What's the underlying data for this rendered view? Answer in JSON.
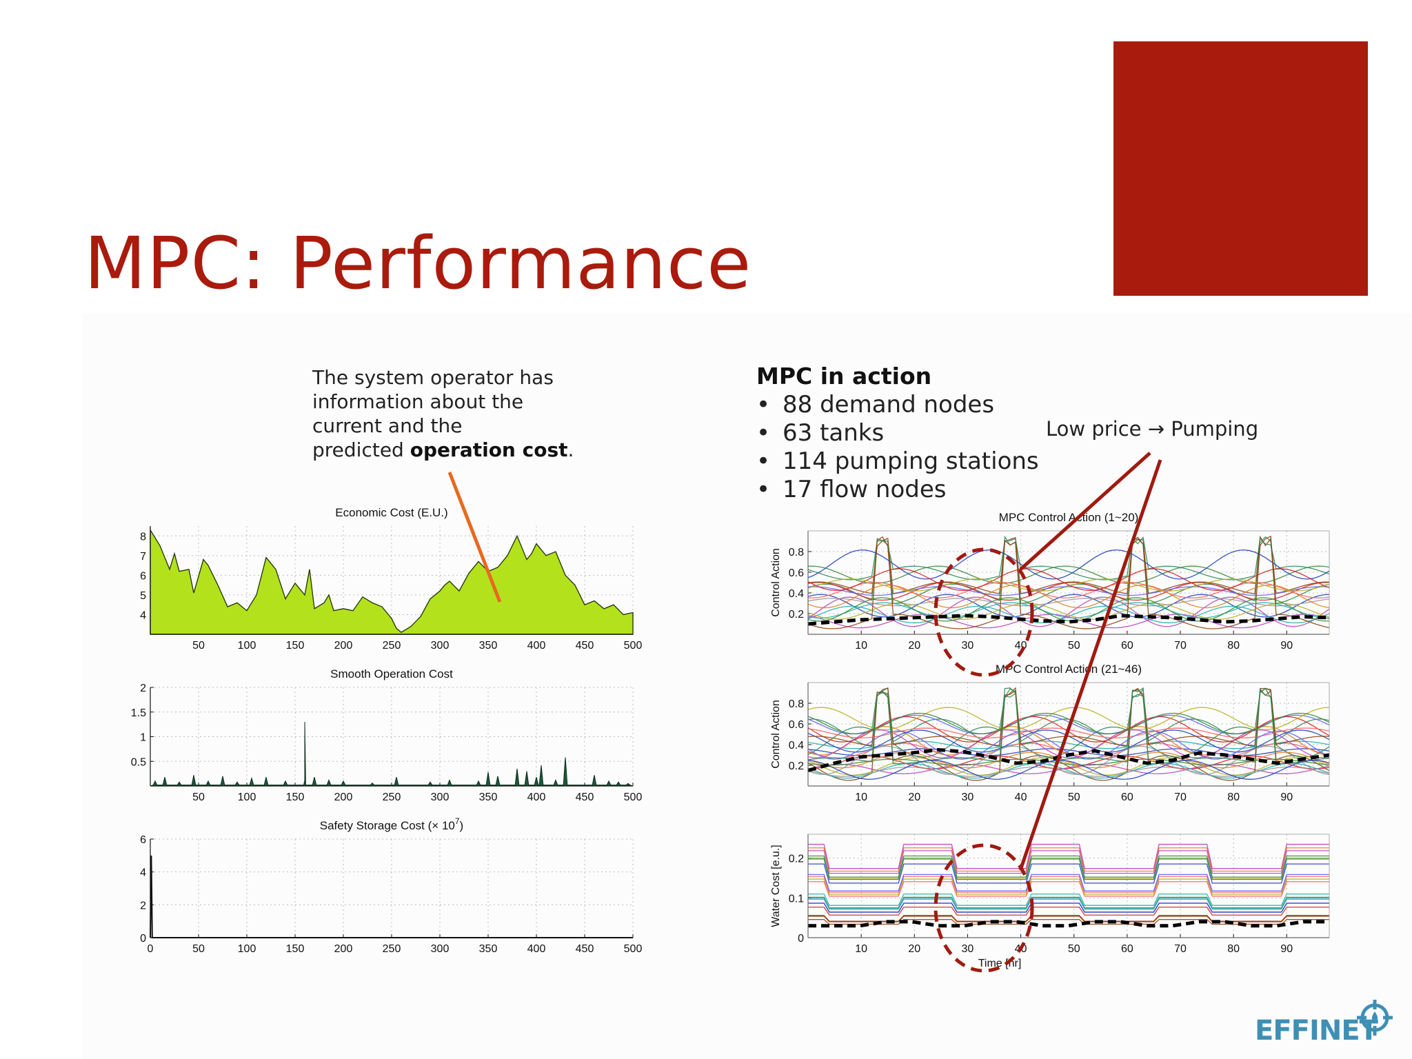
{
  "slide": {
    "title": "MPC: Performance",
    "accent_color": "#a91b0d",
    "callout": {
      "line1": "The system operator has",
      "line2": "information about the",
      "line3": "current and the",
      "line4_prefix": "predicted ",
      "line4_bold": "operation cost",
      "line4_suffix": "."
    },
    "mpc_heading": "MPC in action",
    "mpc_bullets": [
      "88 demand nodes",
      "63 tanks",
      "114 pumping stations",
      "17 flow nodes"
    ],
    "bullet_glyph": "•",
    "low_price_label": "Low price → Pumping",
    "logo_text": "EFFINET",
    "logo_color": "#3f8fb4",
    "arrow_color": "#e8691e",
    "annotation_color": "#a01a10"
  },
  "chart_data": [
    {
      "id": "economic",
      "type": "area",
      "title": "Economic Cost (E.U.)",
      "xlim": [
        0,
        500
      ],
      "ylim": [
        3,
        8.5
      ],
      "xticks": [
        50,
        100,
        150,
        200,
        250,
        300,
        350,
        400,
        450,
        500
      ],
      "yticks": [
        4,
        5,
        6,
        7,
        8
      ],
      "fill": "#b3e21d",
      "x": [
        0,
        10,
        20,
        25,
        30,
        40,
        45,
        55,
        60,
        70,
        80,
        90,
        100,
        110,
        120,
        125,
        130,
        140,
        150,
        160,
        165,
        170,
        180,
        185,
        190,
        200,
        210,
        220,
        230,
        240,
        250,
        255,
        260,
        270,
        280,
        290,
        300,
        305,
        310,
        320,
        330,
        340,
        350,
        360,
        370,
        380,
        390,
        395,
        400,
        410,
        420,
        430,
        440,
        450,
        460,
        470,
        480,
        490,
        500
      ],
      "y": [
        8.3,
        7.5,
        6.3,
        7.1,
        6.2,
        6.3,
        5.1,
        6.8,
        6.5,
        5.5,
        4.4,
        4.6,
        4.2,
        5.0,
        6.9,
        6.6,
        6.3,
        4.8,
        5.6,
        5.0,
        6.3,
        4.3,
        4.6,
        5.0,
        4.2,
        4.3,
        4.2,
        4.9,
        4.6,
        4.4,
        3.8,
        3.3,
        3.1,
        3.4,
        3.9,
        4.8,
        5.2,
        5.5,
        5.7,
        5.2,
        6.1,
        6.7,
        6.2,
        6.4,
        7.0,
        8.0,
        6.8,
        7.1,
        7.6,
        7.0,
        7.2,
        6.0,
        5.5,
        4.5,
        4.7,
        4.3,
        4.5,
        4.0,
        4.1
      ]
    },
    {
      "id": "smooth",
      "type": "area",
      "title": "Smooth Operation Cost",
      "xlim": [
        0,
        500
      ],
      "ylim": [
        0,
        2
      ],
      "xticks": [
        50,
        100,
        150,
        200,
        250,
        300,
        350,
        400,
        450,
        500
      ],
      "yticks": [
        0.5,
        1,
        1.5,
        2
      ],
      "fill": "#1a5a3a",
      "spikes": [
        [
          5,
          0.1
        ],
        [
          15,
          0.18
        ],
        [
          30,
          0.08
        ],
        [
          45,
          0.22
        ],
        [
          60,
          0.1
        ],
        [
          75,
          0.2
        ],
        [
          90,
          0.08
        ],
        [
          105,
          0.16
        ],
        [
          120,
          0.18
        ],
        [
          140,
          0.1
        ],
        [
          160,
          0.12
        ],
        [
          170,
          0.18
        ],
        [
          185,
          0.12
        ],
        [
          200,
          0.1
        ],
        [
          230,
          0.06
        ],
        [
          255,
          0.18
        ],
        [
          290,
          0.08
        ],
        [
          310,
          0.12
        ],
        [
          340,
          0.1
        ],
        [
          350,
          0.28
        ],
        [
          360,
          0.2
        ],
        [
          380,
          0.35
        ],
        [
          390,
          0.3
        ],
        [
          400,
          0.18
        ],
        [
          405,
          0.42
        ],
        [
          420,
          0.12
        ],
        [
          430,
          0.58
        ],
        [
          460,
          0.22
        ],
        [
          475,
          0.1
        ],
        [
          485,
          0.08
        ],
        [
          495,
          0.05
        ]
      ],
      "peak": [
        160,
        1.3
      ]
    },
    {
      "id": "safety",
      "type": "line",
      "title": "Safety Storage Cost",
      "title_suffix": "(× 10",
      "title_exp": "7",
      "title_close": ")",
      "xlim": [
        0,
        500
      ],
      "ylim": [
        0,
        6
      ],
      "xticks": [
        0,
        50,
        100,
        150,
        200,
        250,
        300,
        350,
        400,
        450,
        500
      ],
      "yticks": [
        0,
        2,
        4,
        6
      ],
      "x": [
        0,
        1,
        2,
        500
      ],
      "y": [
        0,
        5.0,
        0,
        0
      ]
    },
    {
      "id": "ctrl1",
      "type": "line",
      "title": "MPC Control Action (1~20)",
      "ylabel": "Control Action",
      "xlim": [
        0,
        98
      ],
      "ylim": [
        0,
        1
      ],
      "xticks": [
        10,
        20,
        30,
        40,
        50,
        60,
        70,
        80,
        90
      ],
      "yticks": [
        0.2,
        0.4,
        0.6,
        0.8
      ],
      "series_count": 20,
      "average": [
        0.1,
        0.12,
        0.14,
        0.15,
        0.16,
        0.17,
        0.18,
        0.17,
        0.15,
        0.13,
        0.12,
        0.14,
        0.18,
        0.17,
        0.16,
        0.14,
        0.12,
        0.13,
        0.15,
        0.17,
        0.16
      ]
    },
    {
      "id": "ctrl2",
      "type": "line",
      "title": "MPC Control Action (21~46)",
      "ylabel": "Control Action",
      "xlim": [
        0,
        98
      ],
      "ylim": [
        0,
        1
      ],
      "xticks": [
        10,
        20,
        30,
        40,
        50,
        60,
        70,
        80,
        90
      ],
      "yticks": [
        0.2,
        0.4,
        0.6,
        0.8
      ],
      "series_count": 26,
      "average": [
        0.15,
        0.22,
        0.28,
        0.3,
        0.32,
        0.35,
        0.33,
        0.28,
        0.22,
        0.24,
        0.3,
        0.34,
        0.28,
        0.22,
        0.25,
        0.32,
        0.3,
        0.26,
        0.22,
        0.26,
        0.3
      ]
    },
    {
      "id": "water",
      "type": "line",
      "title": "",
      "ylabel": "Water Cost [e.u.]",
      "xlabel": "Time [hr]",
      "xlim": [
        0,
        98
      ],
      "ylim": [
        0,
        0.26
      ],
      "xticks": [
        10,
        20,
        30,
        40,
        50,
        60,
        70,
        80,
        90
      ],
      "yticks": [
        0,
        0.1,
        0.2
      ],
      "series_count": 22,
      "average": [
        0.03,
        0.03,
        0.03,
        0.04,
        0.04,
        0.03,
        0.03,
        0.04,
        0.04,
        0.03,
        0.03,
        0.04,
        0.04,
        0.03,
        0.03,
        0.04,
        0.04,
        0.03,
        0.03,
        0.04,
        0.04
      ]
    }
  ]
}
